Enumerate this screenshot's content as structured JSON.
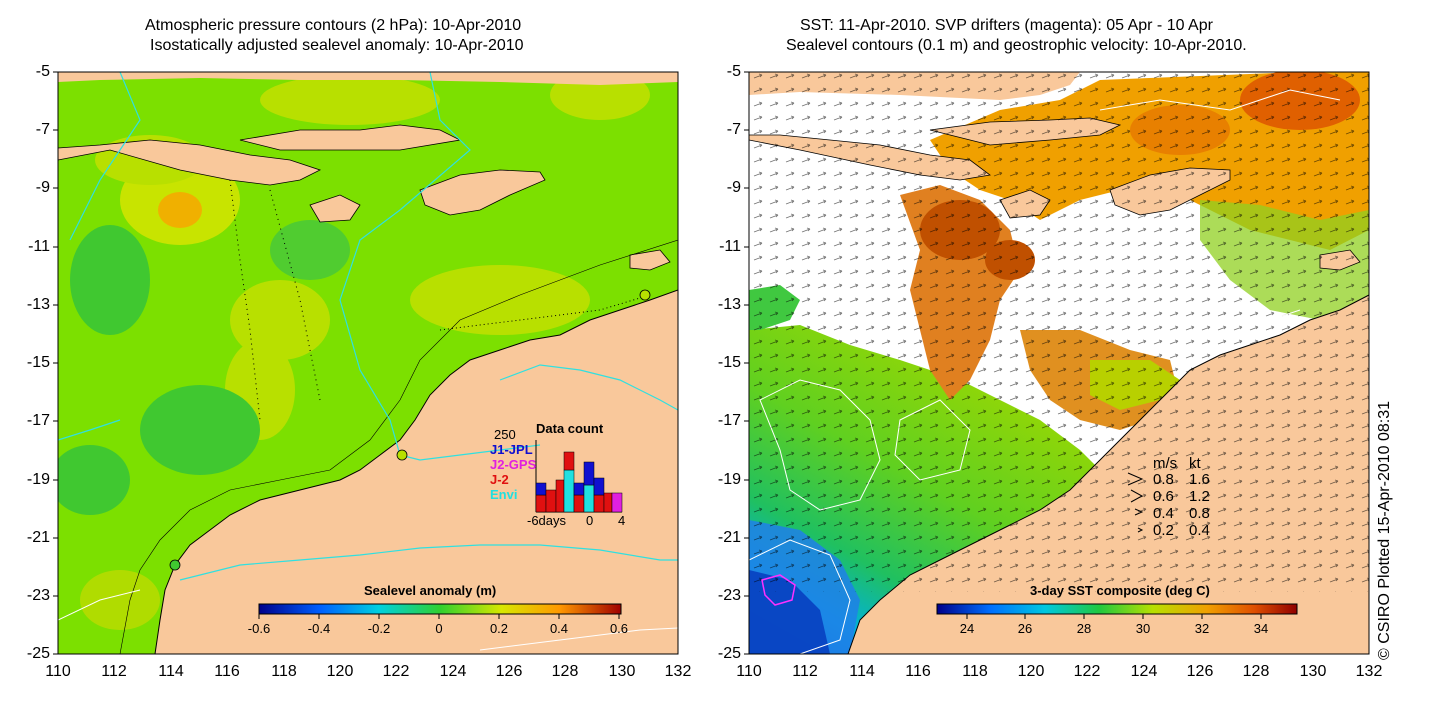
{
  "left_panel": {
    "title_line1": "Atmospheric pressure contours (2 hPa): 10-Apr-2010",
    "title_line2": "Isostatically adjusted sealevel anomaly: 10-Apr-2010",
    "colorbar": {
      "label": "Sealevel anomaly (m)",
      "ticks": [
        "-0.6",
        "-0.4",
        "-0.2",
        "0",
        "0.2",
        "0.4",
        "0.6"
      ],
      "range": [
        -0.6,
        0.6
      ]
    },
    "data_count": {
      "title": "Data count",
      "max_label": "250",
      "series": [
        {
          "name": "J1-JPL",
          "color": "#1010d0"
        },
        {
          "name": "J2-GPS",
          "color": "#e020e0"
        },
        {
          "name": "J-2",
          "color": "#e01010"
        },
        {
          "name": "Envi",
          "color": "#20e0e0"
        }
      ],
      "x_tick_left": "-6days",
      "x_tick_mid": "0",
      "x_tick_right": "4"
    }
  },
  "right_panel": {
    "title_line1": "SST: 11-Apr-2010. SVP drifters (magenta): 05 Apr - 10 Apr",
    "title_line2": "Sealevel contours (0.1 m) and geostrophic velocity: 10-Apr-2010.",
    "colorbar": {
      "label": "3-day SST composite (deg C)",
      "ticks": [
        "24",
        "26",
        "28",
        "30",
        "32",
        "34"
      ],
      "range": [
        23,
        35.3
      ]
    },
    "velocity_legend": {
      "header_ms": "m/s",
      "header_kt": "kt",
      "rows": [
        {
          "ms": "0.8",
          "kt": "1.6"
        },
        {
          "ms": "0.6",
          "kt": "1.2"
        },
        {
          "ms": "0.4",
          "kt": "0.8"
        },
        {
          "ms": "0.2",
          "kt": "0.4"
        }
      ]
    }
  },
  "axes": {
    "lat_ticks": [
      "-5",
      "-7",
      "-9",
      "-11",
      "-13",
      "-15",
      "-17",
      "-19",
      "-21",
      "-23",
      "-25"
    ],
    "lon_ticks": [
      "110",
      "112",
      "114",
      "116",
      "118",
      "120",
      "122",
      "124",
      "126",
      "128",
      "130",
      "132"
    ],
    "lat_range": [
      -25,
      -5
    ],
    "lon_range": [
      110,
      132
    ]
  },
  "credit": "© CSIRO Plotted 15-Apr-2010 08:31",
  "colors": {
    "land": "#f9c89b",
    "ocean_mid": "#7fe000",
    "ocean_high": "#e8e000",
    "contour_cyan": "#30e0e0"
  }
}
